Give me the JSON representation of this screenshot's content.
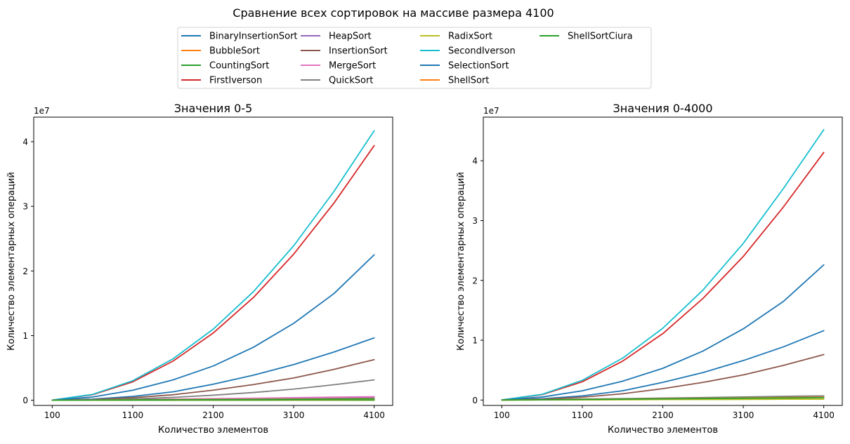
{
  "figure": {
    "suptitle": "Сравнение всех сортировок на массиве размера 4100"
  },
  "legend": {
    "placement": "top-center",
    "entries": [
      {
        "name": "BinaryInsertionSort",
        "color": "#1f77b4"
      },
      {
        "name": "BubbleSort",
        "color": "#ff7f0e"
      },
      {
        "name": "CountingSort",
        "color": "#2ca02c"
      },
      {
        "name": "FirstIverson",
        "color": "#d62728"
      },
      {
        "name": "HeapSort",
        "color": "#9467bd"
      },
      {
        "name": "InsertionSort",
        "color": "#8c564b"
      },
      {
        "name": "MergeSort",
        "color": "#e377c2"
      },
      {
        "name": "QuickSort",
        "color": "#7f7f7f"
      },
      {
        "name": "RadixSort",
        "color": "#bcbd22"
      },
      {
        "name": "SecondIverson",
        "color": "#17becf"
      },
      {
        "name": "SelectionSort",
        "color": "#1f77b4"
      },
      {
        "name": "ShellSort",
        "color": "#ff7f0e"
      },
      {
        "name": "ShellSortCiura",
        "color": "#2ca02c"
      }
    ]
  },
  "chart_data": [
    {
      "type": "line",
      "title": "Значения 0-5",
      "xlabel": "Количество элементов",
      "ylabel": "Количество элементарных операций",
      "offset_text": "1e7",
      "xlim": [
        -130,
        4330
      ],
      "ylim": [
        -800000,
        43800000
      ],
      "xticks": [
        100,
        1100,
        2100,
        3100,
        4100
      ],
      "xtick_labels": [
        "100",
        "1100",
        "2100",
        "3100",
        "4100"
      ],
      "yticks": [
        0,
        10000000,
        20000000,
        30000000,
        40000000
      ],
      "ytick_labels": [
        "0",
        "1",
        "2",
        "3",
        "4"
      ],
      "grid": false,
      "x": [
        100,
        600,
        1100,
        1600,
        2100,
        2600,
        3100,
        3600,
        4100
      ],
      "series": [
        {
          "name": "BinaryInsertionSort",
          "values": [
            5000,
            180000,
            600000,
            1300000,
            2480000,
            3880000,
            5520000,
            7460000,
            9650000
          ]
        },
        {
          "name": "BubbleSort",
          "values": [
            5000,
            6000,
            8000,
            10000,
            12000,
            14000,
            16000,
            18000,
            20000
          ]
        },
        {
          "name": "CountingSort",
          "values": [
            1000,
            5000,
            9000,
            13000,
            17000,
            21000,
            25000,
            29000,
            33000
          ]
        },
        {
          "name": "FirstIverson",
          "values": [
            20000,
            850000,
            2850000,
            6050000,
            10400000,
            15900000,
            22600000,
            30500000,
            39400000
          ]
        },
        {
          "name": "HeapSort",
          "values": [
            5000,
            50000,
            90000,
            130000,
            180000,
            230000,
            280000,
            330000,
            380000
          ]
        },
        {
          "name": "InsertionSort",
          "values": [
            5000,
            120000,
            400000,
            850000,
            1560000,
            2430000,
            3450000,
            4780000,
            6280000
          ]
        },
        {
          "name": "MergeSort",
          "values": [
            5000,
            60000,
            110000,
            180000,
            250000,
            330000,
            400000,
            480000,
            560000
          ]
        },
        {
          "name": "QuickSort",
          "values": [
            3000,
            60000,
            200000,
            440000,
            780000,
            1200000,
            1720000,
            2400000,
            3150000
          ]
        },
        {
          "name": "RadixSort",
          "values": [
            2000,
            20000,
            40000,
            60000,
            80000,
            100000,
            120000,
            140000,
            160000
          ]
        },
        {
          "name": "SecondIverson",
          "values": [
            20000,
            900000,
            3020000,
            6400000,
            11000000,
            16800000,
            23900000,
            32300000,
            41700000
          ]
        },
        {
          "name": "SelectionSort",
          "values": [
            10000,
            500000,
            1550000,
            3150000,
            5300000,
            8200000,
            11900000,
            16500000,
            22500000
          ]
        },
        {
          "name": "ShellSort",
          "values": [
            2000,
            30000,
            60000,
            90000,
            120000,
            150000,
            180000,
            210000,
            240000
          ]
        },
        {
          "name": "ShellSortCiura",
          "values": [
            2000,
            25000,
            50000,
            75000,
            100000,
            125000,
            150000,
            175000,
            200000
          ]
        }
      ]
    },
    {
      "type": "line",
      "title": "Значения 0-4000",
      "xlabel": "Количество элементов",
      "ylabel": "Количество элементарных операций",
      "offset_text": "1e7",
      "xlim": [
        -130,
        4330
      ],
      "ylim": [
        -900000,
        47300000
      ],
      "xticks": [
        100,
        1100,
        2100,
        3100,
        4100
      ],
      "xtick_labels": [
        "100",
        "1100",
        "2100",
        "3100",
        "4100"
      ],
      "yticks": [
        0,
        10000000,
        20000000,
        30000000,
        40000000
      ],
      "ytick_labels": [
        "0",
        "1",
        "2",
        "3",
        "4"
      ],
      "grid": false,
      "x": [
        100,
        600,
        1100,
        1600,
        2100,
        2600,
        3100,
        3600,
        4100
      ],
      "series": [
        {
          "name": "BinaryInsertionSort",
          "values": [
            5000,
            210000,
            700000,
            1550000,
            2950000,
            4600000,
            6600000,
            8900000,
            11600000
          ]
        },
        {
          "name": "BubbleSort",
          "values": [
            5000,
            60000,
            120000,
            180000,
            240000,
            300000,
            360000,
            420000,
            480000
          ]
        },
        {
          "name": "CountingSort",
          "values": [
            3000,
            25000,
            45000,
            65000,
            90000,
            110000,
            130000,
            150000,
            170000
          ]
        },
        {
          "name": "FirstIverson",
          "values": [
            20000,
            900000,
            3050000,
            6500000,
            11100000,
            17000000,
            24000000,
            32300000,
            41400000
          ]
        },
        {
          "name": "HeapSort",
          "values": [
            5000,
            60000,
            120000,
            190000,
            260000,
            340000,
            420000,
            500000,
            580000
          ]
        },
        {
          "name": "InsertionSort",
          "values": [
            5000,
            140000,
            480000,
            1050000,
            1900000,
            2950000,
            4200000,
            5800000,
            7600000
          ]
        },
        {
          "name": "MergeSort",
          "values": [
            5000,
            60000,
            120000,
            190000,
            260000,
            330000,
            410000,
            490000,
            570000
          ]
        },
        {
          "name": "QuickSort",
          "values": [
            5000,
            80000,
            160000,
            240000,
            330000,
            420000,
            520000,
            620000,
            700000
          ]
        },
        {
          "name": "RadixSort",
          "values": [
            2000,
            20000,
            40000,
            60000,
            80000,
            100000,
            120000,
            140000,
            160000
          ]
        },
        {
          "name": "SecondIverson",
          "values": [
            20000,
            950000,
            3300000,
            7000000,
            12000000,
            18400000,
            26200000,
            35400000,
            45200000
          ]
        },
        {
          "name": "SelectionSort",
          "values": [
            10000,
            500000,
            1550000,
            3150000,
            5300000,
            8200000,
            11900000,
            16500000,
            22600000
          ]
        },
        {
          "name": "ShellSort",
          "values": [
            5000,
            50000,
            110000,
            170000,
            230000,
            290000,
            350000,
            410000,
            470000
          ]
        },
        {
          "name": "ShellSortCiura",
          "values": [
            5000,
            45000,
            100000,
            150000,
            200000,
            250000,
            300000,
            350000,
            400000
          ]
        }
      ]
    }
  ]
}
